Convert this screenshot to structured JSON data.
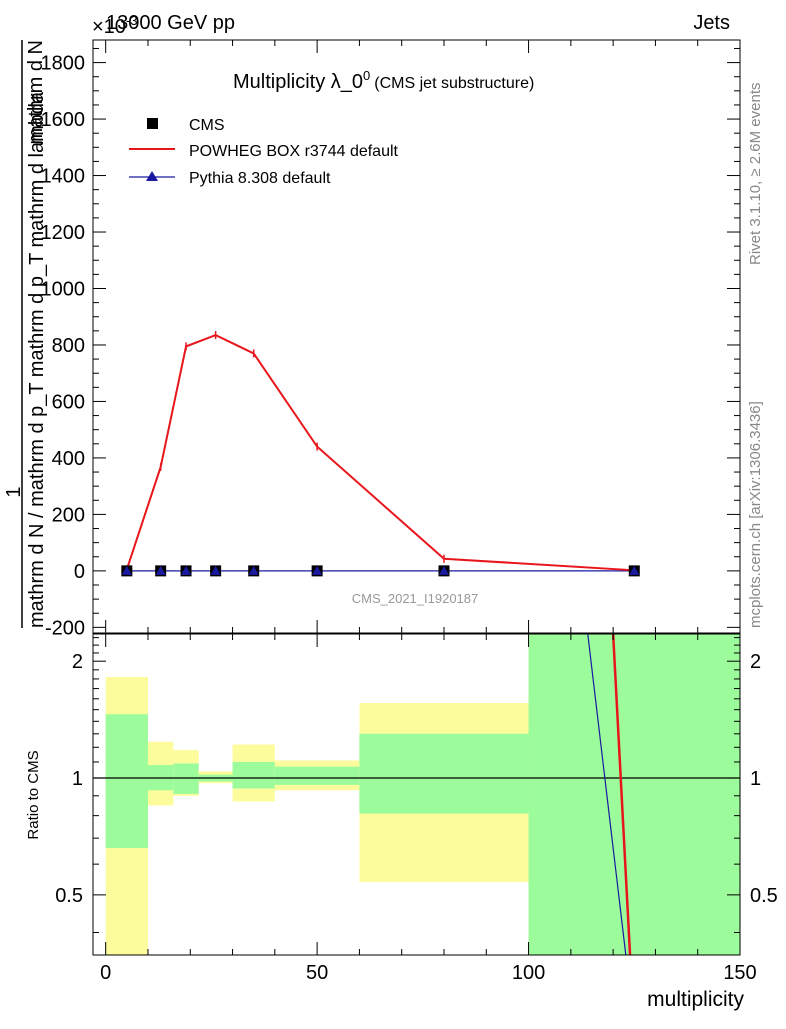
{
  "header": {
    "left_label": "13000 GeV pp",
    "right_label": "Jets",
    "exponent_label": "×10",
    "exponent_power": "-3"
  },
  "side_labels": {
    "rivet": "Rivet 3.1.10, ≥ 2.6M events",
    "mcplots": "mcplots.cern.ch [arXiv:1306.3436]"
  },
  "chart_data": [
    {
      "type": "line",
      "title_main": "Multiplicity λ_0",
      "title_sup": "0",
      "title_suffix": "(CMS jet substructure)",
      "ylabel_numerator": "mathrm d N",
      "ylabel_denominator": "mathrm d N / mathrm d p_T mathrm d p_T mathrm d lambda",
      "ylabel_prefix": "1",
      "watermark": "CMS_2021_I1920187",
      "xlim": [
        -3,
        150
      ],
      "ylim": [
        -220,
        1880
      ],
      "yticks": [
        -200,
        0,
        200,
        400,
        600,
        800,
        1000,
        1200,
        1400,
        1600,
        1800
      ],
      "legend_position": "top-left",
      "series": [
        {
          "name": "CMS",
          "color": "#000000",
          "marker": "square",
          "x": [
            5,
            13,
            19,
            26,
            35,
            50,
            80,
            125
          ],
          "y": [
            0,
            0,
            0,
            0,
            0,
            0,
            0,
            0
          ]
        },
        {
          "name": "POWHEG BOX r3744 default",
          "color": "#e8161b",
          "marker": "line",
          "x": [
            5,
            13,
            19,
            26,
            35,
            50,
            80,
            125
          ],
          "y": [
            5,
            368,
            795,
            835,
            770,
            440,
            43,
            2
          ]
        },
        {
          "name": "Pythia 8.308 default",
          "color": "#1a1aa0",
          "marker": "triangle",
          "x": [
            5,
            13,
            19,
            26,
            35,
            50,
            80,
            125
          ],
          "y": [
            0,
            0,
            0,
            0,
            0,
            0,
            0,
            0
          ]
        }
      ]
    },
    {
      "type": "area",
      "ylabel": "Ratio to CMS",
      "xlabel": "multiplicity",
      "xlim": [
        -3,
        150
      ],
      "ylim": [
        0.35,
        2.35
      ],
      "xticks": [
        0,
        50,
        100,
        150
      ],
      "yticks": [
        0.5,
        1,
        2
      ],
      "reference_line": 1,
      "bands": [
        {
          "x0": 0,
          "x1": 10,
          "green": [
            0.66,
            1.46
          ],
          "yellow": [
            0.35,
            1.82
          ]
        },
        {
          "x0": 10,
          "x1": 16,
          "green": [
            0.93,
            1.08
          ],
          "yellow": [
            0.85,
            1.24
          ]
        },
        {
          "x0": 16,
          "x1": 22,
          "green": [
            0.91,
            1.09
          ],
          "yellow": [
            0.9,
            1.18
          ]
        },
        {
          "x0": 22,
          "x1": 30,
          "green": [
            0.98,
            1.02
          ],
          "yellow": [
            0.97,
            1.04
          ]
        },
        {
          "x0": 30,
          "x1": 40,
          "green": [
            0.94,
            1.1
          ],
          "yellow": [
            0.87,
            1.22
          ]
        },
        {
          "x0": 40,
          "x1": 60,
          "green": [
            0.96,
            1.07
          ],
          "yellow": [
            0.93,
            1.11
          ]
        },
        {
          "x0": 60,
          "x1": 100,
          "green": [
            0.81,
            1.3
          ],
          "yellow": [
            0.54,
            1.56
          ]
        },
        {
          "x0": 100,
          "x1": 150,
          "green": [
            0.35,
            2.35
          ],
          "yellow": [
            0.35,
            2.35
          ]
        }
      ],
      "band_colors": {
        "green": "#9cfc9c",
        "yellow": "#fcfc9c"
      },
      "series": [
        {
          "name": "POWHEG BOX r3744 default",
          "color": "#e8161b",
          "x": [
            120,
            124
          ],
          "y": [
            2.35,
            0.35
          ]
        },
        {
          "name": "Pythia 8.308 default",
          "color": "#1a1aa0",
          "x": [
            114,
            123
          ],
          "y": [
            2.35,
            0.35
          ]
        }
      ]
    }
  ]
}
